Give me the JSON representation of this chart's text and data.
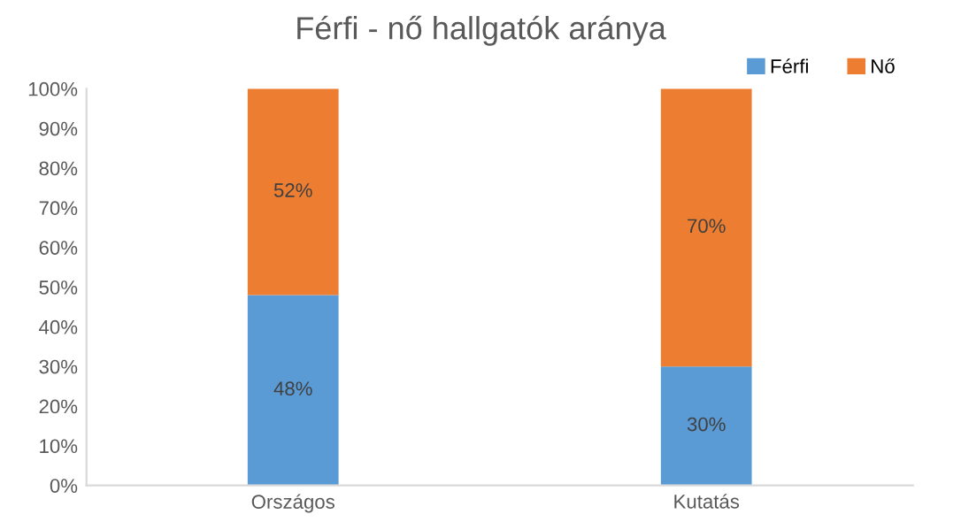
{
  "chart_data": {
    "type": "bar",
    "title": "Férfi - nő hallgatók aránya",
    "categories": [
      "Országos",
      "Kutatás"
    ],
    "stacked": true,
    "series": [
      {
        "name": "Férfi",
        "color": "#5b9bd5",
        "values": [
          48,
          30
        ],
        "value_labels": [
          "48%",
          "30%"
        ]
      },
      {
        "name": "Nő",
        "color": "#ed7d31",
        "values": [
          52,
          70
        ],
        "value_labels": [
          "52%",
          "70%"
        ]
      }
    ],
    "ylim": [
      0,
      100
    ],
    "yticks": [
      {
        "value": 0,
        "label": "0%"
      },
      {
        "value": 10,
        "label": "10%"
      },
      {
        "value": 20,
        "label": "20%"
      },
      {
        "value": 30,
        "label": "30%"
      },
      {
        "value": 40,
        "label": "40%"
      },
      {
        "value": 50,
        "label": "50%"
      },
      {
        "value": 60,
        "label": "60%"
      },
      {
        "value": 70,
        "label": "70%"
      },
      {
        "value": 80,
        "label": "80%"
      },
      {
        "value": 90,
        "label": "90%"
      },
      {
        "value": 100,
        "label": "100%"
      }
    ],
    "grid": false,
    "legend": "top right"
  }
}
